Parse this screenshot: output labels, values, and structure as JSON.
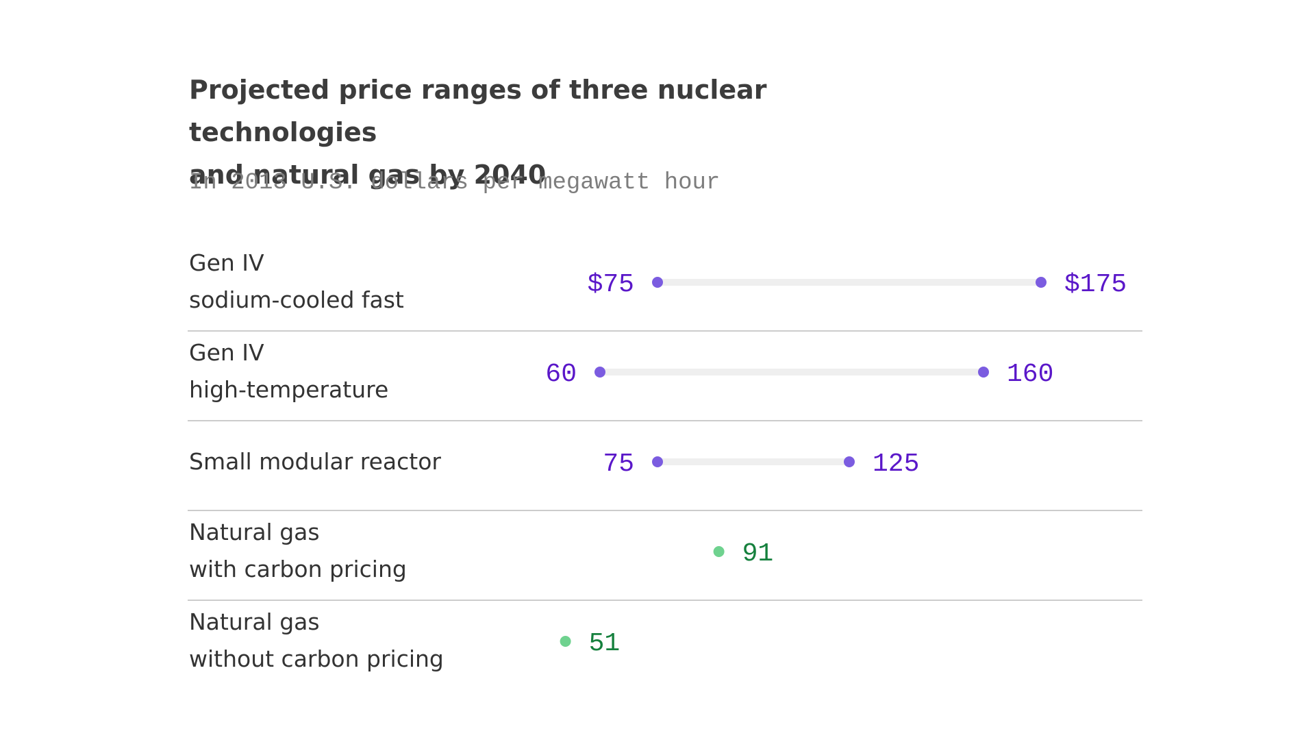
{
  "chart_data": {
    "type": "dot-range",
    "title_lines": [
      "Projected price ranges of three nuclear technologies",
      "and natural gas by 2040"
    ],
    "subtitle": "In 2013 U.S. dollars per megawatt hour",
    "x_unit": "$ per MWh",
    "colors": {
      "nuclear_dot": "#7b5ce0",
      "nuclear_text": "#5a17c9",
      "gas_dot": "#6fd28f",
      "gas_text": "#15803d",
      "range_bar": "#efefef",
      "divider": "#cccccc"
    },
    "rows": [
      {
        "label_lines": [
          "Gen IV",
          "sodium-cooled fast"
        ],
        "kind": "nuclear",
        "low": 75,
        "high": 175,
        "low_label": "$75",
        "high_label": "$175"
      },
      {
        "label_lines": [
          "Gen IV",
          "high-temperature"
        ],
        "kind": "nuclear",
        "low": 60,
        "high": 160,
        "low_label": "60",
        "high_label": "160"
      },
      {
        "label_lines": [
          "Small modular reactor"
        ],
        "kind": "nuclear",
        "low": 75,
        "high": 125,
        "low_label": "75",
        "high_label": "125"
      },
      {
        "label_lines": [
          "Natural gas",
          "with carbon pricing"
        ],
        "kind": "gas",
        "value": 91,
        "value_label": "91"
      },
      {
        "label_lines": [
          "Natural gas",
          "without carbon pricing"
        ],
        "kind": "gas",
        "value": 51,
        "value_label": "51"
      }
    ]
  }
}
